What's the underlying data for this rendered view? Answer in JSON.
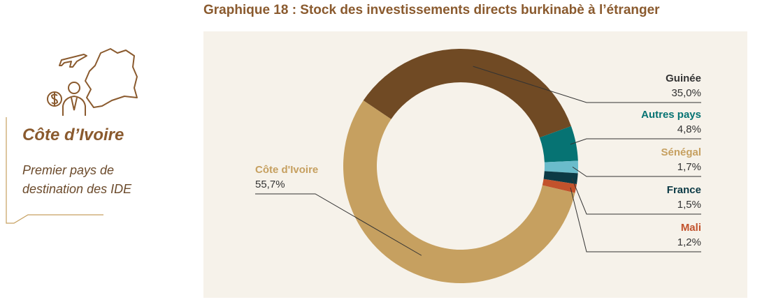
{
  "title": "Graphique 18 : Stock des investissements directs burkinabè à l’étranger",
  "sidebar": {
    "heading": "Côte d’Ivoire",
    "subtitle_lines": [
      "Premier pays de",
      "destination des IDE"
    ],
    "icons": [
      "airplane-icon",
      "cote-divoire-map-icon",
      "investor-icon",
      "dollar-coin-icon"
    ]
  },
  "colors": {
    "title": "#8a5a2e",
    "panel_background": "#f6f2ea",
    "leader_line": "#333333"
  },
  "chart_data": {
    "type": "pie",
    "style": "donut",
    "categories": [
      "Guinée",
      "Autres pays",
      "Sénégal",
      "France",
      "Mali",
      "Côte d'Ivoire"
    ],
    "values": [
      35.0,
      4.8,
      1.7,
      1.5,
      1.2,
      55.7
    ],
    "value_labels": [
      "35,0%",
      "4,8%",
      "1,7%",
      "1,5%",
      "1,2%",
      "55,7%"
    ],
    "colors": [
      "#704a24",
      "#067373",
      "#6abccb",
      "#0c3a45",
      "#c2522c",
      "#c6a060"
    ],
    "label_colors": [
      "#333333",
      "#067373",
      "#c6a060",
      "#0c3a45",
      "#c2522c",
      "#c6a060"
    ],
    "label_positions": [
      "right",
      "right",
      "right",
      "right",
      "right",
      "left"
    ]
  }
}
